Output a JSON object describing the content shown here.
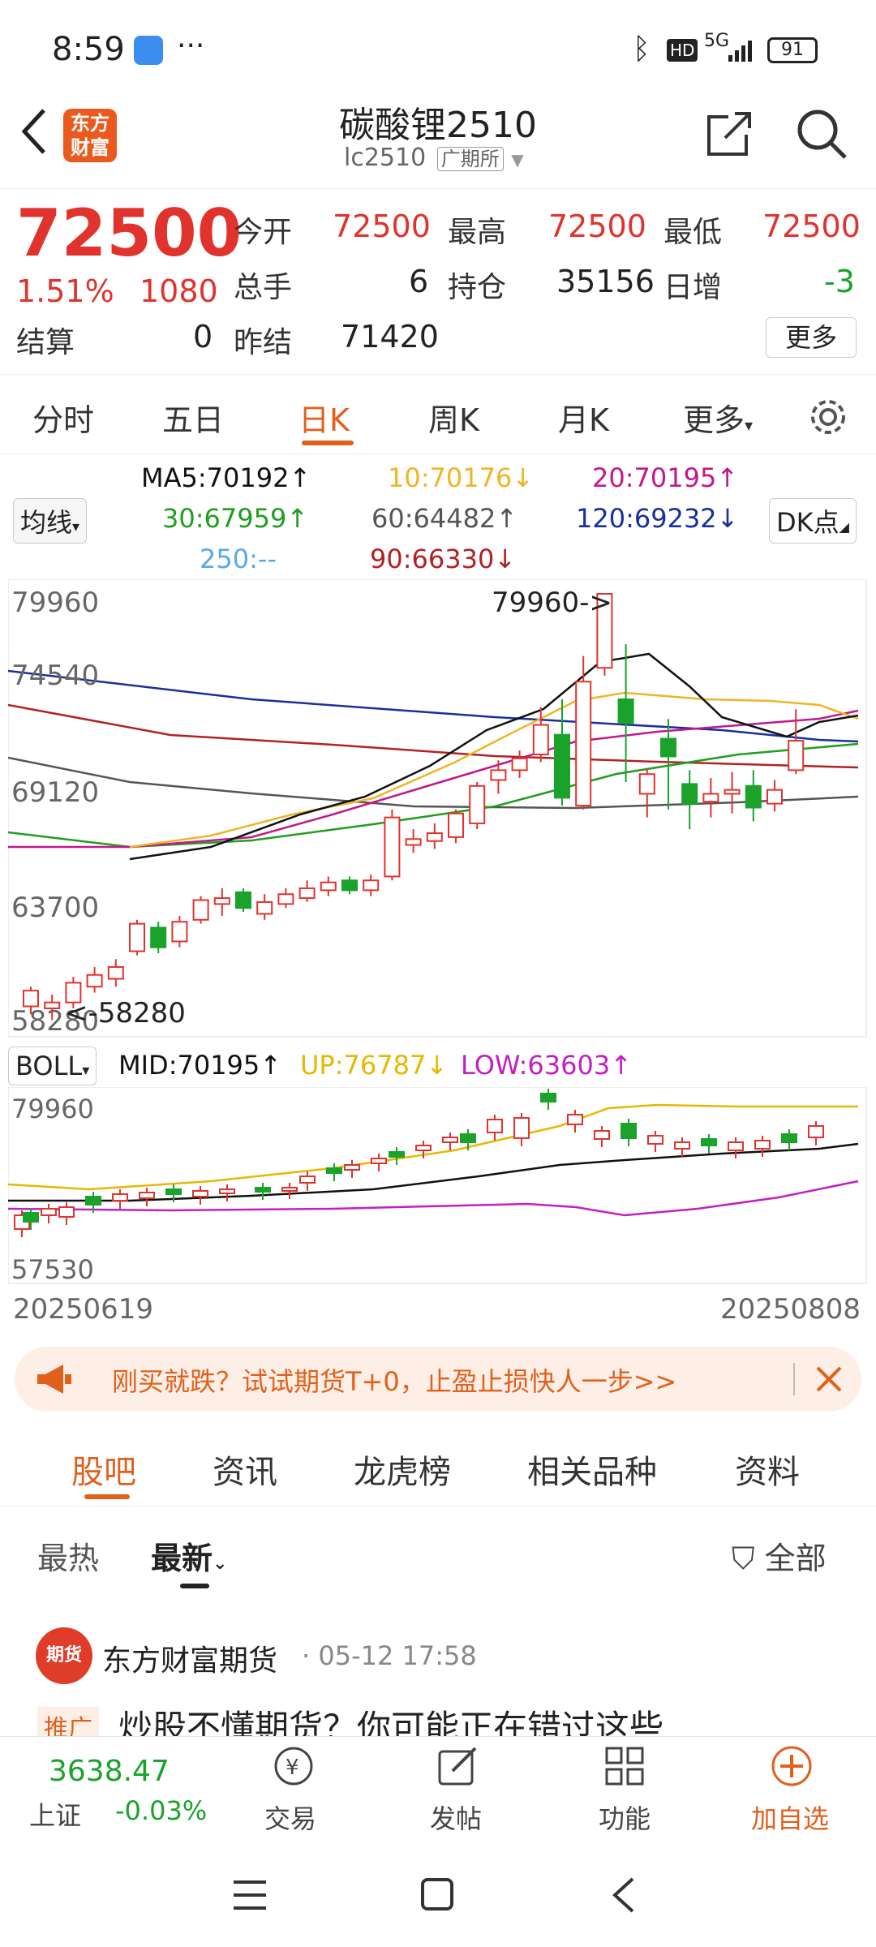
{
  "status": {
    "time": "8:59",
    "dots": "···",
    "battery": "91",
    "net": "5G"
  },
  "header": {
    "title": "碳酸锂2510",
    "code": "lc2510",
    "exchange": "广期所",
    "logo": "东方\n财富"
  },
  "quote": {
    "price": "72500",
    "pct": "1.51%",
    "chg": "1080",
    "open_label": "今开",
    "open": "72500",
    "high_label": "最高",
    "high": "72500",
    "low_label": "最低",
    "low": "72500",
    "vol_label": "总手",
    "vol": "6",
    "oi_label": "持仓",
    "oi": "35156",
    "inc_label": "日增",
    "inc": "-3",
    "settle_label": "结算",
    "settle": "0",
    "prev_label": "昨结",
    "prev": "71420",
    "more": "更多"
  },
  "tabs": [
    "分时",
    "五日",
    "日K",
    "周K",
    "月K",
    "更多"
  ],
  "ma": {
    "selector": "均线",
    "ma5": "MA5:70192↑",
    "ma10": "10:70176↓",
    "ma20": "20:70195↑",
    "ma30": "30:67959↑",
    "ma60": "60:64482↑",
    "ma120": "120:69232↓",
    "ma250": "250:--",
    "ma90": "90:66330↓",
    "dk": "DK点"
  },
  "main_chart": {
    "y_labels": [
      "79960",
      "74540",
      "69120",
      "63700",
      "58280"
    ],
    "high_note": "79960->",
    "low_note": "<-58280"
  },
  "boll": {
    "selector": "BOLL",
    "mid": "MID:70195↑",
    "up": "UP:76787↓",
    "low": "LOW:63603↑",
    "y_top": "79960",
    "y_bottom": "57530"
  },
  "dates": {
    "start": "20250619",
    "end": "20250808"
  },
  "ad": {
    "text": "刚买就跌？试试期货T+0，止盈止损快人一步>>"
  },
  "subtabs": [
    "股吧",
    "资讯",
    "龙虎榜",
    "相关品种",
    "资料"
  ],
  "sort": {
    "hot": "最热",
    "new": "最新",
    "filter": "全部"
  },
  "post": {
    "author": "东方财富期货",
    "time": "05-12 17:58",
    "tag": "推广",
    "text": "炒股不懂期货？你可能正在错过这些",
    "avatar": "期货"
  },
  "bottom": {
    "index_val": "3638.47",
    "index_name": "上证",
    "index_chg": "-0.03%",
    "trade": "交易",
    "post": "发帖",
    "func": "功能",
    "add": "加自选"
  },
  "colors": {
    "red": "#e0332e",
    "green": "#1aa22b",
    "accent": "#e0601c",
    "ma5": "#111111",
    "ma10": "#f0b429",
    "ma20": "#c2188b",
    "ma30": "#1f9e1f",
    "ma60": "#555555",
    "ma120": "#1a2f9e",
    "ma90": "#b22222"
  }
}
